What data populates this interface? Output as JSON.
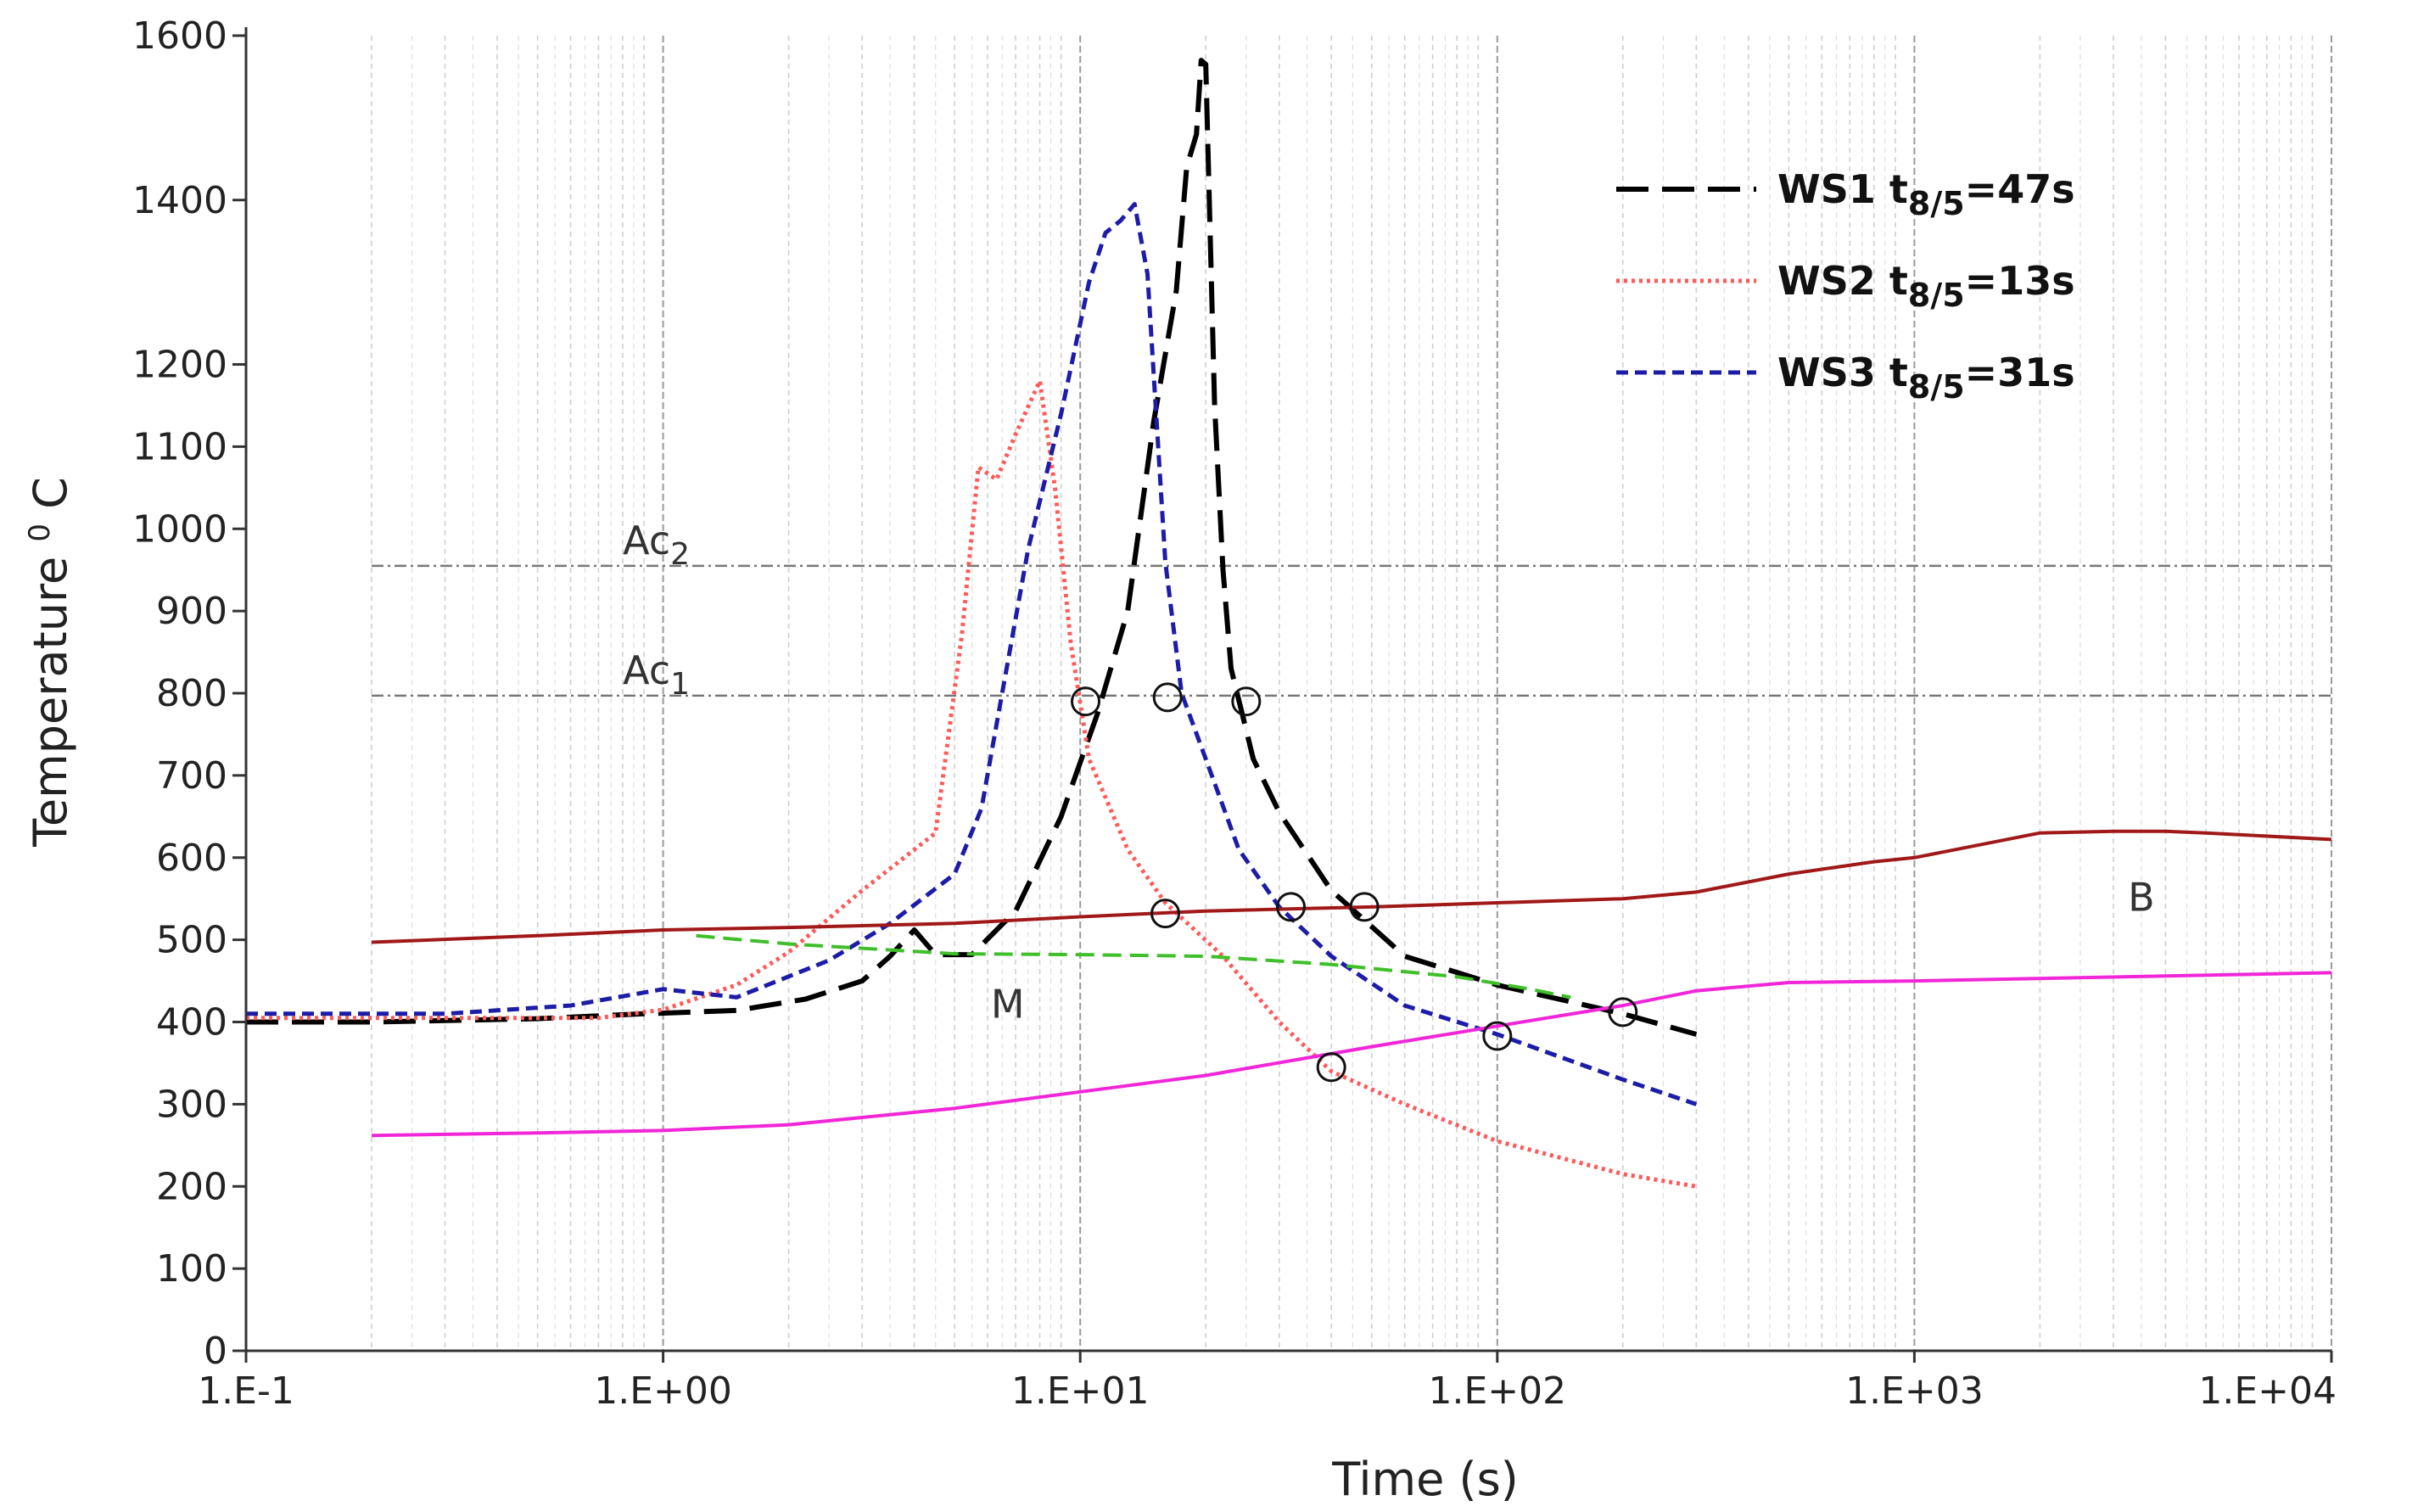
{
  "chart_data": {
    "type": "line",
    "title": "",
    "xlabel": "Time (s)",
    "ylabel": "Temperature",
    "ylabel_sup": "0",
    "ylabel_unit": "C",
    "xscale": "log",
    "xlim": [
      0.1,
      10000
    ],
    "ylim": [
      0,
      1600
    ],
    "grid": "vertical minor and major lines",
    "legend_position": "top-right",
    "x_tick_labels": [
      "1.E-1",
      "1.E+00",
      "1.E+01",
      "1.E+02",
      "1.E+03",
      "1.E+04"
    ],
    "x_tick_values": [
      0.1,
      1,
      10,
      100,
      1000,
      10000
    ],
    "y_tick_values": [
      0,
      100,
      200,
      300,
      400,
      500,
      600,
      700,
      800,
      900,
      1000,
      1100,
      1200,
      1400,
      1600
    ],
    "y_tick_labels": [
      "0",
      "100",
      "200",
      "300",
      "400",
      "500",
      "600",
      "700",
      "800",
      "900",
      "1000",
      "1100",
      "1200",
      "1400",
      "1600"
    ],
    "legend": [
      {
        "name": "WS1",
        "label_prefix": "WS1 t",
        "sub": "8/5",
        "label_suffix": "=47s",
        "color": "#000000"
      },
      {
        "name": "WS2",
        "label_prefix": "WS2 t",
        "sub": "8/5",
        "label_suffix": "=13s",
        "color": "#ff5a5a"
      },
      {
        "name": "WS3",
        "label_prefix": "WS3 t",
        "sub": "8/5",
        "label_suffix": "=31s",
        "color": "#1c1ca8"
      }
    ],
    "reference_lines": [
      {
        "name": "Ac2",
        "base": "Ac",
        "sub": "2",
        "y": 955,
        "label_x": 1.0
      },
      {
        "name": "Ac1",
        "base": "Ac",
        "sub": "1",
        "y": 797,
        "label_x": 1.0
      }
    ],
    "region_labels": [
      {
        "text": "M",
        "x": 6.7,
        "y": 405
      },
      {
        "text": "B",
        "x": 3500,
        "y": 535
      }
    ],
    "series": [
      {
        "name": "WS1",
        "color": "#000000",
        "dash": "38 16",
        "width": 6,
        "x": [
          0.1,
          0.2,
          0.5,
          0.9,
          1.5,
          2.2,
          3,
          3.5,
          4,
          4.5,
          5.5,
          7,
          9,
          11,
          13,
          15,
          17,
          18,
          19,
          19.5,
          20,
          21,
          22,
          23,
          26,
          30,
          40,
          60,
          100,
          200,
          300
        ],
        "y": [
          400,
          400,
          404,
          410,
          414,
          428,
          450,
          480,
          512,
          482,
          482,
          535,
          650,
          775,
          900,
          1130,
          1290,
          1440,
          1480,
          1570,
          1565,
          1150,
          950,
          830,
          720,
          655,
          560,
          480,
          445,
          410,
          385
        ]
      },
      {
        "name": "WS2",
        "color": "#ff5a5a",
        "dash": "4 5",
        "width": 5,
        "x": [
          0.1,
          0.3,
          0.5,
          0.7,
          1,
          1.5,
          2,
          3,
          4.5,
          5.2,
          5.7,
          6.3,
          7,
          8,
          8.7,
          9.5,
          10.5,
          13,
          16,
          22,
          30,
          40,
          60,
          100,
          200,
          300
        ],
        "y": [
          405,
          405,
          405,
          405,
          415,
          445,
          485,
          560,
          630,
          870,
          1075,
          1060,
          1115,
          1180,
          1050,
          860,
          720,
          610,
          545,
          480,
          400,
          340,
          300,
          255,
          215,
          200
        ]
      },
      {
        "name": "WS3",
        "color": "#1c1ca8",
        "dash": "14 8",
        "width": 5,
        "x": [
          0.1,
          0.3,
          0.6,
          1,
          1.5,
          2.5,
          3.5,
          5,
          5.8,
          6.5,
          7.5,
          9,
          10.5,
          11.5,
          12.5,
          13.5,
          14.5,
          16,
          17.5,
          20,
          24,
          30,
          40,
          60,
          100,
          200,
          300
        ],
        "y": [
          410,
          410,
          420,
          440,
          430,
          475,
          520,
          580,
          660,
          800,
          975,
          1140,
          1300,
          1360,
          1375,
          1395,
          1310,
          960,
          800,
          720,
          610,
          540,
          480,
          420,
          385,
          330,
          300
        ]
      },
      {
        "name": "B-start",
        "color": "#a01818",
        "dash": "",
        "width": 4,
        "x": [
          0.2,
          0.5,
          1,
          2,
          5,
          10,
          20,
          50,
          100,
          200,
          300,
          500,
          800,
          1000,
          2000,
          3000,
          4000,
          5000,
          10000
        ],
        "y": [
          497,
          505,
          512,
          515,
          520,
          528,
          535,
          540,
          545,
          550,
          558,
          580,
          595,
          600,
          630,
          632,
          632,
          630,
          622
        ]
      },
      {
        "name": "Ms",
        "color": "#f026d8",
        "dash": "",
        "width": 4,
        "x": [
          0.2,
          0.5,
          1,
          2,
          5,
          10,
          20,
          50,
          100,
          200,
          300,
          500,
          1000,
          10000
        ],
        "y": [
          262,
          265,
          268,
          275,
          295,
          315,
          335,
          370,
          395,
          420,
          438,
          448,
          450,
          460
        ]
      },
      {
        "name": "M-region",
        "color": "#3fbf2a",
        "dash": "22 10",
        "width": 4,
        "x": [
          1.2,
          2,
          5,
          10,
          20,
          40,
          80,
          120,
          150
        ],
        "y": [
          505,
          495,
          483,
          482,
          480,
          470,
          455,
          440,
          430
        ]
      }
    ],
    "markers": [
      {
        "x": 10.3,
        "y": 790
      },
      {
        "x": 16.2,
        "y": 795
      },
      {
        "x": 25,
        "y": 790
      },
      {
        "x": 16,
        "y": 532
      },
      {
        "x": 32,
        "y": 540
      },
      {
        "x": 48,
        "y": 540
      },
      {
        "x": 40,
        "y": 345
      },
      {
        "x": 100,
        "y": 383
      },
      {
        "x": 200,
        "y": 412
      }
    ]
  }
}
